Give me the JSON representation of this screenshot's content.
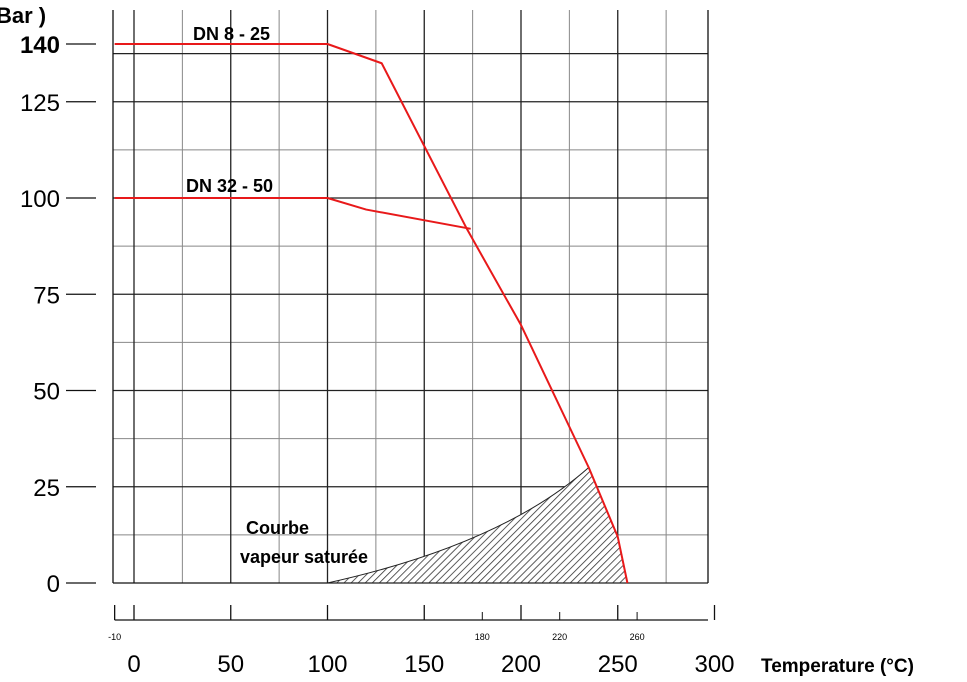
{
  "chart_data": {
    "type": "line",
    "ylabel": "Bar )",
    "xlabel": "Temperature (°C)",
    "xlim": [
      -10,
      300
    ],
    "ylim": [
      0,
      140
    ],
    "grid": true,
    "y_ticks": [
      "0",
      "25",
      "50",
      "75",
      "100",
      "125",
      "140"
    ],
    "x_ticks": [
      "0",
      "50",
      "100",
      "150",
      "200",
      "250",
      "300"
    ],
    "x_minor_labels": [
      "-10",
      "180",
      "220",
      "260"
    ],
    "series": [
      {
        "name": "DN 8 - 25",
        "x": [
          -10,
          100,
          128,
          172,
          200,
          235,
          250,
          255
        ],
        "y": [
          140,
          140,
          135,
          92,
          67,
          30,
          12,
          0
        ]
      },
      {
        "name": "DN 32 - 50",
        "x": [
          -10,
          100,
          120,
          174
        ],
        "y": [
          100,
          100,
          97,
          92
        ]
      }
    ],
    "annotations": [
      "Courbe",
      "vapeur saturée"
    ],
    "line_color": "#e8191a"
  }
}
